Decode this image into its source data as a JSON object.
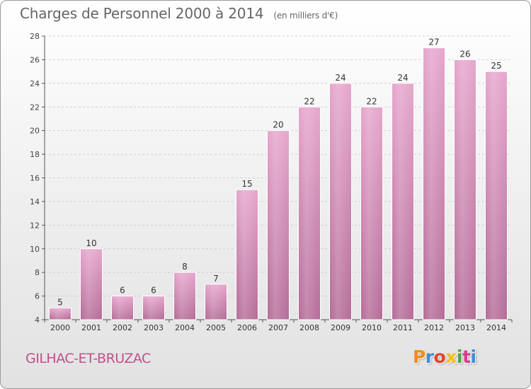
{
  "header": {
    "title": "Charges de Personnel 2000 à 2014",
    "subtitle": "(en milliers d'€)"
  },
  "footer": {
    "place_name": "GILHAC-ET-BRUZAC",
    "logo_text": "Proxiti"
  },
  "colors": {
    "bar_top": "#e6a6cc",
    "bar_bottom": "#b56d98",
    "title": "#666666",
    "place": "#c0508a"
  },
  "chart_data": {
    "type": "bar",
    "categories": [
      "2000",
      "2001",
      "2002",
      "2003",
      "2004",
      "2005",
      "2006",
      "2007",
      "2008",
      "2009",
      "2010",
      "2011",
      "2012",
      "2013",
      "2014"
    ],
    "values": [
      5,
      10,
      6,
      6,
      8,
      7,
      15,
      20,
      22,
      24,
      22,
      24,
      27,
      26,
      25
    ],
    "title": "Charges de Personnel 2000 à 2014",
    "subtitle": "(en milliers d'€)",
    "ylim": [
      4,
      28
    ],
    "yticks": [
      4,
      6,
      8,
      10,
      12,
      14,
      16,
      18,
      20,
      22,
      24,
      26,
      28
    ],
    "grid": true,
    "data_labels": true
  }
}
